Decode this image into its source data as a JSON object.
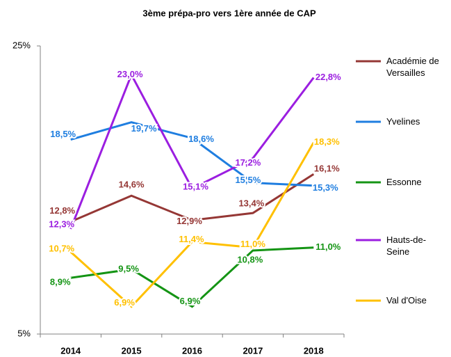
{
  "chart_data": {
    "type": "line",
    "title": "3ème prépa-pro vers 1ère année de CAP",
    "categories": [
      "2014",
      "2015",
      "2016",
      "2017",
      "2018"
    ],
    "ylim": [
      5,
      25
    ],
    "yticks": [
      {
        "value": 5,
        "label": "5%"
      },
      {
        "value": 25,
        "label": "25%"
      }
    ],
    "series": [
      {
        "name": "Académie de Versailles",
        "color": "#953735",
        "values": [
          12.8,
          14.6,
          12.9,
          13.4,
          16.1
        ],
        "value_labels": [
          "12,8%",
          "14,6%",
          "12,9%",
          "13,4%",
          "16,1%"
        ]
      },
      {
        "name": "Yvelines",
        "color": "#1f7ee0",
        "values": [
          18.5,
          19.7,
          18.6,
          15.5,
          15.3
        ],
        "value_labels": [
          "18,5%",
          "19,7%",
          "18,6%",
          "15,5%",
          "15,3%"
        ]
      },
      {
        "name": "Essonne",
        "color": "#149414",
        "values": [
          8.9,
          9.5,
          6.9,
          10.8,
          11.0
        ],
        "value_labels": [
          "8,9%",
          "9,5%",
          "6,9%",
          "10,8%",
          "11,0%"
        ]
      },
      {
        "name": "Hauts-de-Seine",
        "color": "#9b1ee0",
        "values": [
          12.3,
          23.0,
          15.1,
          17.2,
          22.8
        ],
        "value_labels": [
          "12,3%",
          "23,0%",
          "15,1%",
          "17,2%",
          "22,8%"
        ]
      },
      {
        "name": "Val d'Oise",
        "color": "#ffc000",
        "values": [
          10.7,
          6.9,
          11.4,
          11.0,
          18.3
        ],
        "value_labels": [
          "10,7%",
          "6,9%",
          "11,4%",
          "11,0%",
          "18,3%"
        ]
      }
    ]
  }
}
